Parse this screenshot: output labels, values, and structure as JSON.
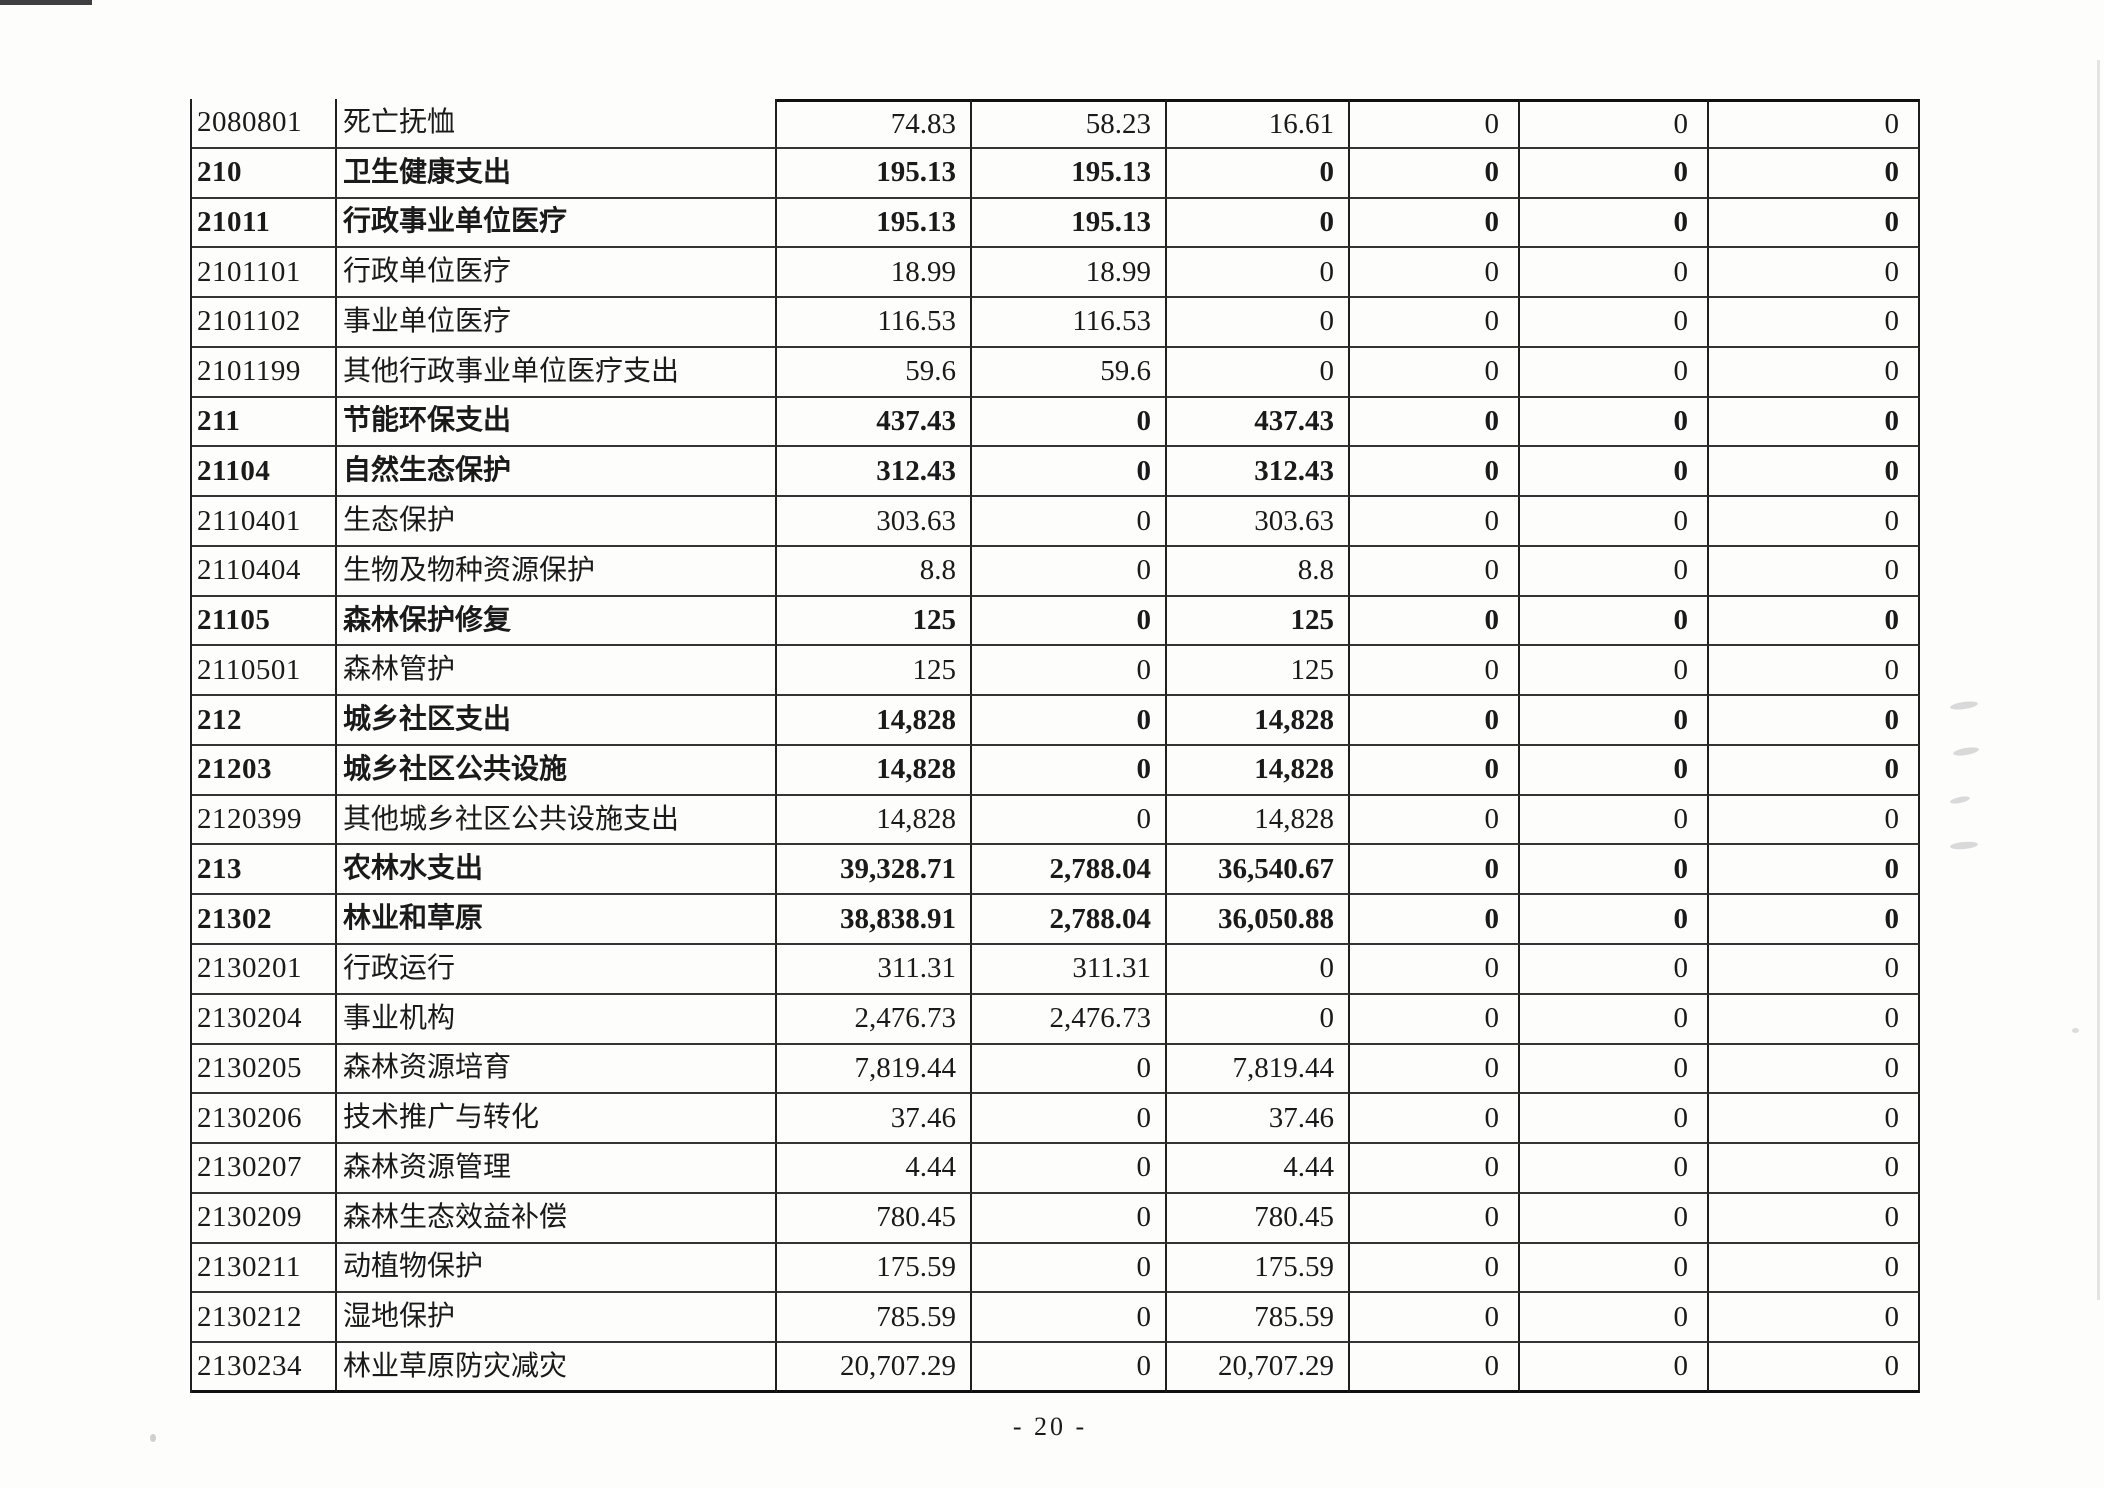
{
  "page": {
    "footer_page_label": "- 20 -"
  },
  "colors": {
    "paper": "#fdfdfc",
    "ink": "#1a1a1a",
    "line_v": "#1f1f1f",
    "line_h": "#343434",
    "line_strong": "#101010",
    "smudge": "#b5b5b5",
    "corner_mark": "#3f3f3f"
  },
  "table": {
    "rows": [
      {
        "code": "2080801",
        "name": "死亡抚恤",
        "bold": false,
        "values": [
          "74.83",
          "58.23",
          "16.61",
          "0",
          "0",
          "0"
        ]
      },
      {
        "code": "210",
        "name": "卫生健康支出",
        "bold": true,
        "values": [
          "195.13",
          "195.13",
          "0",
          "0",
          "0",
          "0"
        ]
      },
      {
        "code": "21011",
        "name": "行政事业单位医疗",
        "bold": true,
        "values": [
          "195.13",
          "195.13",
          "0",
          "0",
          "0",
          "0"
        ]
      },
      {
        "code": "2101101",
        "name": "行政单位医疗",
        "bold": false,
        "values": [
          "18.99",
          "18.99",
          "0",
          "0",
          "0",
          "0"
        ]
      },
      {
        "code": "2101102",
        "name": "事业单位医疗",
        "bold": false,
        "values": [
          "116.53",
          "116.53",
          "0",
          "0",
          "0",
          "0"
        ]
      },
      {
        "code": "2101199",
        "name": "其他行政事业单位医疗支出",
        "bold": false,
        "values": [
          "59.6",
          "59.6",
          "0",
          "0",
          "0",
          "0"
        ]
      },
      {
        "code": "211",
        "name": "节能环保支出",
        "bold": true,
        "values": [
          "437.43",
          "0",
          "437.43",
          "0",
          "0",
          "0"
        ]
      },
      {
        "code": "21104",
        "name": "自然生态保护",
        "bold": true,
        "values": [
          "312.43",
          "0",
          "312.43",
          "0",
          "0",
          "0"
        ]
      },
      {
        "code": "2110401",
        "name": "生态保护",
        "bold": false,
        "values": [
          "303.63",
          "0",
          "303.63",
          "0",
          "0",
          "0"
        ]
      },
      {
        "code": "2110404",
        "name": "生物及物种资源保护",
        "bold": false,
        "values": [
          "8.8",
          "0",
          "8.8",
          "0",
          "0",
          "0"
        ]
      },
      {
        "code": "21105",
        "name": "森林保护修复",
        "bold": true,
        "values": [
          "125",
          "0",
          "125",
          "0",
          "0",
          "0"
        ]
      },
      {
        "code": "2110501",
        "name": "森林管护",
        "bold": false,
        "values": [
          "125",
          "0",
          "125",
          "0",
          "0",
          "0"
        ]
      },
      {
        "code": "212",
        "name": "城乡社区支出",
        "bold": true,
        "values": [
          "14,828",
          "0",
          "14,828",
          "0",
          "0",
          "0"
        ]
      },
      {
        "code": "21203",
        "name": "城乡社区公共设施",
        "bold": true,
        "values": [
          "14,828",
          "0",
          "14,828",
          "0",
          "0",
          "0"
        ]
      },
      {
        "code": "2120399",
        "name": "其他城乡社区公共设施支出",
        "bold": false,
        "values": [
          "14,828",
          "0",
          "14,828",
          "0",
          "0",
          "0"
        ]
      },
      {
        "code": "213",
        "name": "农林水支出",
        "bold": true,
        "values": [
          "39,328.71",
          "2,788.04",
          "36,540.67",
          "0",
          "0",
          "0"
        ]
      },
      {
        "code": "21302",
        "name": "林业和草原",
        "bold": true,
        "values": [
          "38,838.91",
          "2,788.04",
          "36,050.88",
          "0",
          "0",
          "0"
        ]
      },
      {
        "code": "2130201",
        "name": "行政运行",
        "bold": false,
        "values": [
          "311.31",
          "311.31",
          "0",
          "0",
          "0",
          "0"
        ]
      },
      {
        "code": "2130204",
        "name": "事业机构",
        "bold": false,
        "values": [
          "2,476.73",
          "2,476.73",
          "0",
          "0",
          "0",
          "0"
        ]
      },
      {
        "code": "2130205",
        "name": "森林资源培育",
        "bold": false,
        "values": [
          "7,819.44",
          "0",
          "7,819.44",
          "0",
          "0",
          "0"
        ]
      },
      {
        "code": "2130206",
        "name": "技术推广与转化",
        "bold": false,
        "values": [
          "37.46",
          "0",
          "37.46",
          "0",
          "0",
          "0"
        ]
      },
      {
        "code": "2130207",
        "name": "森林资源管理",
        "bold": false,
        "values": [
          "4.44",
          "0",
          "4.44",
          "0",
          "0",
          "0"
        ]
      },
      {
        "code": "2130209",
        "name": "森林生态效益补偿",
        "bold": false,
        "values": [
          "780.45",
          "0",
          "780.45",
          "0",
          "0",
          "0"
        ]
      },
      {
        "code": "2130211",
        "name": "动植物保护",
        "bold": false,
        "values": [
          "175.59",
          "0",
          "175.59",
          "0",
          "0",
          "0"
        ]
      },
      {
        "code": "2130212",
        "name": "湿地保护",
        "bold": false,
        "values": [
          "785.59",
          "0",
          "785.59",
          "0",
          "0",
          "0"
        ]
      },
      {
        "code": "2130234",
        "name": "林业草原防灾减灾",
        "bold": false,
        "values": [
          "20,707.29",
          "0",
          "20,707.29",
          "0",
          "0",
          "0"
        ]
      }
    ]
  }
}
